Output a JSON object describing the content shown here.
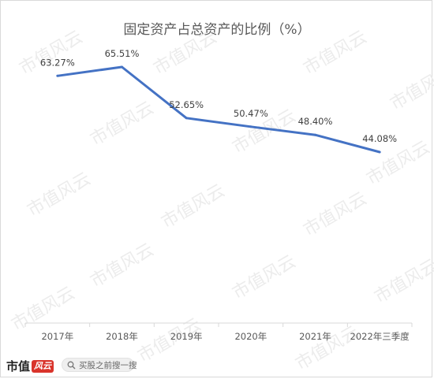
{
  "chart_data": {
    "type": "line",
    "title": "固定资产占总资产的比例（%）",
    "categories": [
      "2017年",
      "2018年",
      "2019年",
      "2020年",
      "2021年",
      "2022年三季度"
    ],
    "series": [
      {
        "values": [
          63.27,
          65.51,
          52.65,
          50.47,
          48.4,
          44.08
        ],
        "labels": [
          "63.27%",
          "65.51%",
          "52.65%",
          "50.47%",
          "48.40%",
          "44.08%"
        ],
        "color": "#4472c4"
      }
    ],
    "ylim": [
      0,
      70
    ],
    "grid": false,
    "legend": "none",
    "axis_color": "#d9d9d9"
  },
  "watermark": {
    "text": "市值风云",
    "color": "#ececec"
  },
  "footer": {
    "brand": "市值",
    "brand_mark": "风云",
    "search_icon": "search-icon",
    "search_text": "买股之前搜一搜"
  }
}
